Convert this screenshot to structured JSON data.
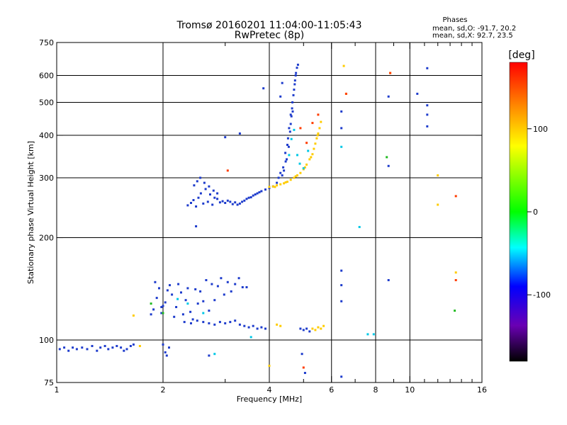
{
  "chart_data": {
    "type": "scatter",
    "title": "Tromsø 20160201 11:04:00-11:05:43",
    "subtitle": "RwPretec (8p)",
    "xlabel": "Frequency [MHz]",
    "ylabel": "Stationary phase Virtual Height [km]",
    "x_scale": "log",
    "y_scale": "log",
    "xlim": [
      1,
      16
    ],
    "ylim": [
      75,
      750
    ],
    "x_ticks": [
      1,
      2,
      4,
      6,
      8,
      10,
      16
    ],
    "x_tick_labels": [
      "1",
      "2",
      "4",
      "6",
      "8",
      "10",
      "16"
    ],
    "x_minor_ticks": [
      3,
      5,
      7,
      9,
      11,
      12,
      13,
      14,
      15
    ],
    "y_ticks": [
      75,
      100,
      200,
      300,
      400,
      500,
      600,
      750
    ],
    "y_tick_labels": [
      "75",
      "100",
      "200",
      "300",
      "400",
      "500",
      "600",
      "750"
    ],
    "grid": true,
    "grid_x": [
      2,
      4,
      6,
      8,
      10
    ],
    "grid_y": [
      100,
      200,
      300,
      400,
      500,
      600
    ],
    "legend_title": "Phases",
    "legend_lines": [
      "mean, sd,O: -91.7, 20.2",
      "mean, sd,X:  92.7, 23.5"
    ],
    "colorbar": {
      "label": "[deg]",
      "range": [
        -180,
        180
      ],
      "ticks": [
        100,
        0,
        -100
      ],
      "tick_labels": [
        "100",
        "0",
        "-100"
      ],
      "colors": [
        "#ff0000",
        "#ff8c00",
        "#ffff00",
        "#00ff00",
        "#00ffff",
        "#0000ff",
        "#6a00b4",
        "#000000"
      ]
    },
    "point_colors": {
      "O_mode": "#1e3ccc",
      "X_mode": "#ffcc00"
    },
    "series": [
      {
        "color": "#1e3ccc",
        "points": [
          [
            1.02,
            94
          ],
          [
            1.05,
            95
          ],
          [
            1.08,
            93
          ],
          [
            1.11,
            95
          ],
          [
            1.14,
            94
          ],
          [
            1.18,
            95
          ],
          [
            1.22,
            94
          ],
          [
            1.26,
            96
          ],
          [
            1.3,
            93
          ],
          [
            1.33,
            95
          ],
          [
            1.37,
            96
          ],
          [
            1.4,
            94
          ],
          [
            1.44,
            95
          ],
          [
            1.48,
            96
          ],
          [
            1.52,
            95
          ],
          [
            1.55,
            93
          ],
          [
            1.58,
            94
          ],
          [
            1.62,
            96
          ],
          [
            1.65,
            97
          ],
          [
            1.85,
            119
          ],
          [
            1.88,
            123
          ],
          [
            1.92,
            133
          ],
          [
            1.95,
            142
          ],
          [
            1.98,
            120
          ],
          [
            2.0,
            126
          ],
          [
            2.03,
            129
          ],
          [
            2.06,
            140
          ],
          [
            2.09,
            145
          ],
          [
            2.12,
            136
          ],
          [
            2.15,
            117
          ],
          [
            2.18,
            125
          ],
          [
            2.21,
            146
          ],
          [
            2.25,
            138
          ],
          [
            2.28,
            119
          ],
          [
            2.32,
            131
          ],
          [
            2.35,
            142
          ],
          [
            2.39,
            121
          ],
          [
            2.43,
            115
          ],
          [
            2.47,
            141
          ],
          [
            2.51,
            128
          ],
          [
            2.55,
            139
          ],
          [
            2.6,
            130
          ],
          [
            2.65,
            150
          ],
          [
            2.7,
            122
          ],
          [
            2.75,
            146
          ],
          [
            2.8,
            131
          ],
          [
            2.86,
            144
          ],
          [
            2.92,
            152
          ],
          [
            2.98,
            136
          ],
          [
            3.05,
            148
          ],
          [
            3.12,
            139
          ],
          [
            3.2,
            146
          ],
          [
            3.28,
            152
          ],
          [
            3.36,
            143
          ],
          [
            2.0,
            97
          ],
          [
            2.03,
            92
          ],
          [
            2.05,
            90
          ],
          [
            2.08,
            95
          ],
          [
            2.3,
            113
          ],
          [
            2.4,
            112
          ],
          [
            2.5,
            114
          ],
          [
            2.6,
            113
          ],
          [
            2.7,
            112
          ],
          [
            2.8,
            111
          ],
          [
            2.9,
            113
          ],
          [
            3.0,
            112
          ],
          [
            3.1,
            113
          ],
          [
            3.2,
            114
          ],
          [
            3.3,
            111
          ],
          [
            3.4,
            110
          ],
          [
            3.5,
            109
          ],
          [
            3.6,
            110
          ],
          [
            3.7,
            108
          ],
          [
            3.8,
            109
          ],
          [
            3.9,
            108
          ],
          [
            2.35,
            249
          ],
          [
            2.4,
            253
          ],
          [
            2.44,
            258
          ],
          [
            2.48,
            247
          ],
          [
            2.52,
            262
          ],
          [
            2.56,
            270
          ],
          [
            2.6,
            252
          ],
          [
            2.64,
            278
          ],
          [
            2.68,
            255
          ],
          [
            2.72,
            268
          ],
          [
            2.76,
            250
          ],
          [
            2.8,
            262
          ],
          [
            2.85,
            260
          ],
          [
            2.9,
            254
          ],
          [
            2.95,
            256
          ],
          [
            3.0,
            253
          ],
          [
            3.05,
            257
          ],
          [
            3.1,
            255
          ],
          [
            3.15,
            251
          ],
          [
            3.2,
            254
          ],
          [
            3.25,
            250
          ],
          [
            3.3,
            252
          ],
          [
            3.35,
            255
          ],
          [
            3.4,
            257
          ],
          [
            3.45,
            260
          ],
          [
            3.5,
            262
          ],
          [
            3.55,
            263
          ],
          [
            3.6,
            266
          ],
          [
            3.65,
            268
          ],
          [
            3.7,
            270
          ],
          [
            3.75,
            272
          ],
          [
            3.8,
            274
          ],
          [
            3.9,
            277
          ],
          [
            4.0,
            280
          ],
          [
            4.1,
            283
          ],
          [
            2.45,
            285
          ],
          [
            2.5,
            293
          ],
          [
            2.55,
            300
          ],
          [
            2.62,
            290
          ],
          [
            2.7,
            283
          ],
          [
            2.78,
            275
          ],
          [
            2.85,
            270
          ],
          [
            4.45,
            335
          ],
          [
            4.5,
            375
          ],
          [
            4.55,
            420
          ],
          [
            4.6,
            460
          ],
          [
            4.65,
            500
          ],
          [
            4.7,
            545
          ],
          [
            4.73,
            580
          ],
          [
            4.76,
            610
          ],
          [
            4.79,
            632
          ],
          [
            4.82,
            645
          ],
          [
            4.68,
            525
          ],
          [
            4.72,
            565
          ],
          [
            4.75,
            600
          ],
          [
            4.64,
            480
          ],
          [
            4.62,
            455
          ],
          [
            4.58,
            410
          ],
          [
            4.54,
            370
          ],
          [
            4.48,
            340
          ],
          [
            4.4,
            315
          ],
          [
            4.35,
            305
          ],
          [
            4.2,
            290
          ],
          [
            4.25,
            300
          ],
          [
            4.3,
            310
          ],
          [
            4.38,
            322
          ],
          [
            4.44,
            355
          ],
          [
            4.52,
            392
          ],
          [
            4.6,
            432
          ],
          [
            4.66,
            470
          ],
          [
            3.85,
            550
          ],
          [
            4.3,
            520
          ],
          [
            4.35,
            570
          ],
          [
            4.9,
            108
          ],
          [
            5.0,
            107
          ],
          [
            5.1,
            108
          ],
          [
            5.2,
            106
          ],
          [
            4.95,
            91
          ],
          [
            5.05,
            80
          ],
          [
            6.4,
            470
          ],
          [
            6.4,
            420
          ],
          [
            6.4,
            160
          ],
          [
            6.4,
            145
          ],
          [
            6.4,
            130
          ],
          [
            6.4,
            78
          ],
          [
            8.7,
            520
          ],
          [
            8.7,
            325
          ],
          [
            8.7,
            150
          ],
          [
            10.5,
            530
          ],
          [
            11.2,
            630
          ],
          [
            11.2,
            490
          ],
          [
            11.2,
            460
          ],
          [
            11.2,
            425
          ],
          [
            3.3,
            405
          ],
          [
            3.0,
            395
          ],
          [
            1.98,
            125
          ],
          [
            1.9,
            148
          ],
          [
            2.48,
            216
          ],
          [
            2.7,
            90
          ],
          [
            3.45,
            143
          ]
        ]
      },
      {
        "color": "#ffcc00",
        "points": [
          [
            4.0,
            282
          ],
          [
            4.1,
            283
          ],
          [
            4.2,
            285
          ],
          [
            4.3,
            287
          ],
          [
            4.4,
            289
          ],
          [
            4.5,
            292
          ],
          [
            4.6,
            296
          ],
          [
            4.7,
            300
          ],
          [
            4.8,
            305
          ],
          [
            4.9,
            310
          ],
          [
            5.0,
            318
          ],
          [
            5.1,
            328
          ],
          [
            5.2,
            340
          ],
          [
            5.3,
            352
          ],
          [
            5.35,
            365
          ],
          [
            5.4,
            378
          ],
          [
            5.45,
            392
          ],
          [
            5.5,
            405
          ],
          [
            5.55,
            420
          ],
          [
            5.6,
            438
          ],
          [
            4.15,
            282
          ],
          [
            4.45,
            291
          ],
          [
            4.75,
            303
          ],
          [
            5.05,
            322
          ],
          [
            5.25,
            345
          ],
          [
            5.48,
            400
          ],
          [
            4.2,
            111
          ],
          [
            4.3,
            110
          ],
          [
            5.3,
            108
          ],
          [
            5.4,
            107
          ],
          [
            5.5,
            109
          ],
          [
            5.6,
            108
          ],
          [
            5.7,
            110
          ],
          [
            1.65,
            118
          ],
          [
            1.72,
            96
          ],
          [
            4.0,
            84
          ],
          [
            6.5,
            640
          ],
          [
            6.6,
            530
          ],
          [
            8.8,
            610
          ],
          [
            12.0,
            250
          ],
          [
            12.0,
            305
          ],
          [
            13.5,
            158
          ]
        ]
      },
      {
        "color": "#00c8e6",
        "points": [
          [
            4.55,
            350
          ],
          [
            4.62,
            390
          ],
          [
            4.7,
            415
          ],
          [
            4.8,
            350
          ],
          [
            4.88,
            330
          ],
          [
            5.0,
            320
          ],
          [
            5.15,
            360
          ],
          [
            2.2,
            132
          ],
          [
            2.35,
            128
          ],
          [
            2.6,
            120
          ],
          [
            2.8,
            91
          ],
          [
            6.4,
            370
          ],
          [
            7.2,
            215
          ],
          [
            7.6,
            104
          ],
          [
            7.9,
            104
          ],
          [
            3.55,
            102
          ]
        ]
      },
      {
        "color": "#ff3c00",
        "points": [
          [
            4.9,
            420
          ],
          [
            5.1,
            380
          ],
          [
            5.3,
            435
          ],
          [
            5.5,
            460
          ],
          [
            3.05,
            315
          ],
          [
            5.0,
            83
          ],
          [
            6.6,
            530
          ],
          [
            13.5,
            265
          ],
          [
            13.5,
            150
          ],
          [
            8.8,
            610
          ]
        ]
      },
      {
        "color": "#22bb22",
        "points": [
          [
            1.85,
            128
          ],
          [
            2.0,
            120
          ],
          [
            8.6,
            345
          ],
          [
            13.4,
            122
          ]
        ]
      }
    ]
  }
}
